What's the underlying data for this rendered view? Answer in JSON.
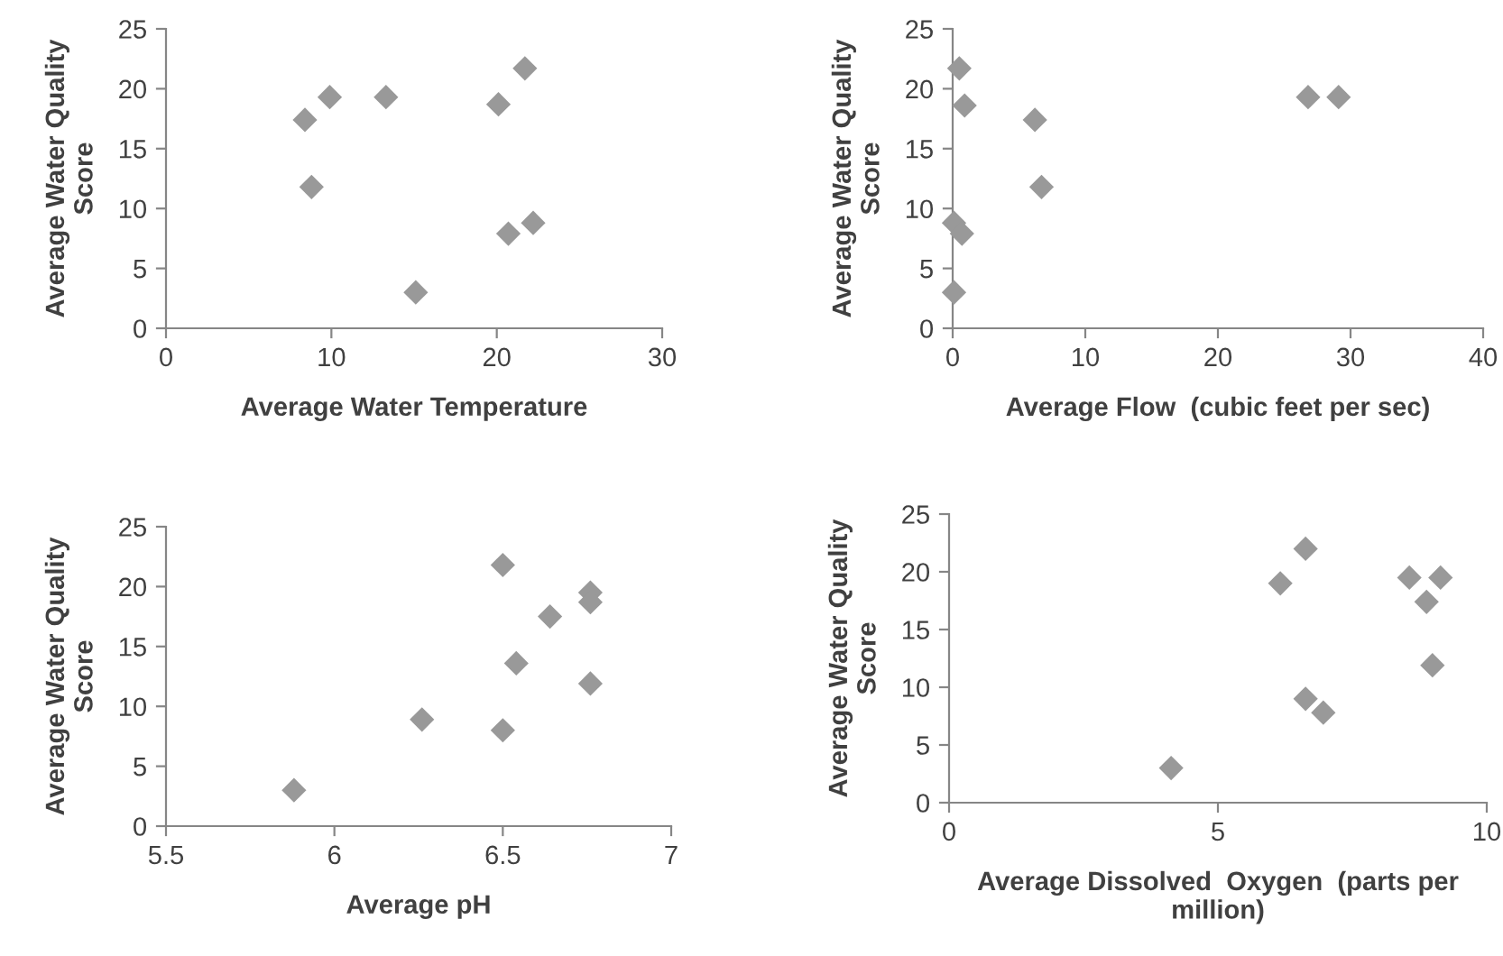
{
  "chart_data": [
    {
      "type": "scatter",
      "xlabel": "Average Water Temperature",
      "ylabel": "Average Water Quality\nScore",
      "xlim": [
        0,
        30
      ],
      "xticks": [
        0,
        10,
        20,
        30
      ],
      "ylim": [
        0,
        25
      ],
      "yticks": [
        0,
        5,
        10,
        15,
        20,
        25
      ],
      "marker": "diamond",
      "grid": false,
      "series": [
        {
          "color": "#999999",
          "x": [
            8.4,
            8.8,
            9.9,
            13.3,
            15.1,
            20.1,
            21.7,
            20.7,
            22.2
          ],
          "values": [
            17.4,
            11.8,
            19.3,
            19.3,
            3.0,
            18.7,
            21.7,
            7.9,
            8.8
          ]
        }
      ]
    },
    {
      "type": "scatter",
      "xlabel": "Average Flow  (cubic feet per sec)",
      "ylabel": "Average Water Quality\nScore",
      "xlim": [
        0,
        40
      ],
      "xticks": [
        0,
        10,
        20,
        30,
        40
      ],
      "ylim": [
        0,
        25
      ],
      "yticks": [
        0,
        5,
        10,
        15,
        20,
        25
      ],
      "marker": "diamond",
      "grid": false,
      "series": [
        {
          "color": "#999999",
          "x": [
            0.5,
            0.9,
            6.2,
            6.7,
            26.8,
            29.1,
            0.1,
            0.7,
            0.1
          ],
          "values": [
            21.7,
            18.6,
            17.4,
            11.8,
            19.3,
            19.3,
            8.8,
            7.9,
            3.0
          ]
        }
      ]
    },
    {
      "type": "scatter",
      "xlabel": "Average pH",
      "ylabel": "Average Water Quality\nScore",
      "xlim": [
        5.5,
        7
      ],
      "xticks": [
        5.5,
        6,
        6.5,
        7
      ],
      "ylim": [
        0,
        25
      ],
      "yticks": [
        0,
        5,
        10,
        15,
        20,
        25
      ],
      "marker": "diamond",
      "grid": false,
      "series": [
        {
          "color": "#999999",
          "x": [
            5.88,
            6.26,
            6.5,
            6.5,
            6.54,
            6.64,
            6.76,
            6.76,
            6.76
          ],
          "values": [
            3.0,
            8.9,
            21.8,
            8.0,
            13.6,
            17.5,
            19.5,
            18.7,
            11.9
          ]
        }
      ]
    },
    {
      "type": "scatter",
      "xlabel": "Average Dissolved  Oxygen  (parts per\nmillion)",
      "ylabel": "Average Water Quality\nScore",
      "xlim": [
        0,
        10
      ],
      "xticks": [
        0,
        5,
        10
      ],
      "ylim": [
        0,
        25
      ],
      "yticks": [
        0,
        5,
        10,
        15,
        20,
        25
      ],
      "marker": "diamond",
      "grid": false,
      "series": [
        {
          "color": "#999999",
          "x": [
            4.13,
            6.16,
            6.63,
            6.63,
            6.96,
            8.56,
            8.88,
            9.14,
            8.99
          ],
          "values": [
            3.0,
            19.0,
            22.0,
            9.0,
            7.8,
            19.5,
            17.4,
            19.5,
            11.9
          ]
        }
      ]
    }
  ]
}
